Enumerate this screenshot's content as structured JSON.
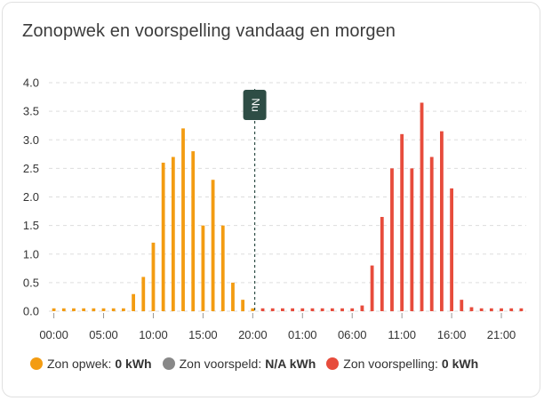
{
  "card": {
    "title": "Zonopwek en voorspelling vandaag en morgen"
  },
  "colors": {
    "opwek": "#f39c12",
    "voorspeld": "#888888",
    "voorspelling": "#e74c3c",
    "now_line": "#2e4d45",
    "grid": "#dddddd"
  },
  "legend": [
    {
      "label": "Zon opwek:",
      "value": "0 kWh",
      "color": "#f39c12"
    },
    {
      "label": "Zon voorspeld:",
      "value": "N/A kWh",
      "color": "#888888"
    },
    {
      "label": "Zon voorspelling:",
      "value": "0 kWh",
      "color": "#e74c3c"
    }
  ],
  "chart_data": {
    "type": "bar",
    "title": "Zonopwek en voorspelling vandaag en morgen",
    "ylim": [
      0,
      4
    ],
    "y_ticks": [
      "0.0",
      "0.5",
      "1.0",
      "1.5",
      "2.0",
      "2.5",
      "3.0",
      "3.5",
      "4.0"
    ],
    "x_ticks": [
      "00:00",
      "05:00",
      "10:00",
      "15:00",
      "20:00",
      "01:00",
      "06:00",
      "11:00",
      "16:00",
      "21:00"
    ],
    "x_unit": "hour offset from today 00:00",
    "now_marker": {
      "label": "Nu",
      "hour": 20.2
    },
    "grid": true,
    "legend_position": "bottom",
    "series": [
      {
        "name": "Zon opwek",
        "color": "#f39c12",
        "hours": [
          0,
          1,
          2,
          3,
          4,
          5,
          6,
          7,
          8,
          9,
          10,
          11,
          12,
          13,
          14,
          15,
          16,
          17,
          18,
          19,
          20
        ],
        "values": [
          0.05,
          0.05,
          0.05,
          0.05,
          0.05,
          0.05,
          0.05,
          0.05,
          0.3,
          0.6,
          1.2,
          2.6,
          2.7,
          3.2,
          2.8,
          1.5,
          2.3,
          1.5,
          0.5,
          0.2,
          0.05
        ]
      },
      {
        "name": "Zon voorspelling",
        "color": "#e74c3c",
        "hours": [
          21,
          22,
          23,
          24,
          25,
          26,
          27,
          28,
          29,
          30,
          31,
          32,
          33,
          34,
          35,
          36,
          37,
          38,
          39,
          40,
          41,
          42,
          43,
          44,
          45,
          46,
          47
        ],
        "values": [
          0.05,
          0.05,
          0.05,
          0.05,
          0.05,
          0.05,
          0.05,
          0.05,
          0.05,
          0.05,
          0.1,
          0.8,
          1.65,
          2.5,
          3.1,
          2.5,
          3.65,
          2.7,
          3.15,
          2.15,
          0.2,
          0.07,
          0.05,
          0.05,
          0.05,
          0.05,
          0.05
        ]
      }
    ]
  }
}
